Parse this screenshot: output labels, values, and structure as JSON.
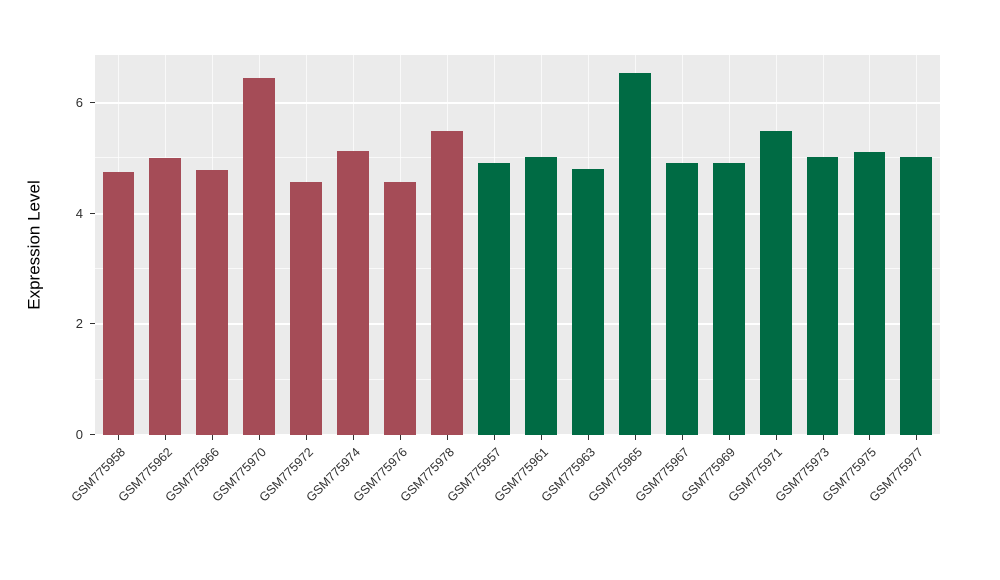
{
  "figure": {
    "background": "#FFFFFF",
    "panel_background": "#EBEBEB",
    "gridline_color": "#FFFFFF"
  },
  "chart_data": {
    "type": "bar",
    "title": "",
    "xlabel": "",
    "ylabel": "Expression Level",
    "ylim": [
      0,
      6.87
    ],
    "yticks": [
      0,
      2,
      4,
      6
    ],
    "yminor": [
      1,
      3,
      5
    ],
    "grid": true,
    "legend": "none",
    "categories": [
      "GSM775958",
      "GSM775962",
      "GSM775966",
      "GSM775970",
      "GSM775972",
      "GSM775974",
      "GSM775976",
      "GSM775978",
      "GSM775957",
      "GSM775961",
      "GSM775963",
      "GSM775965",
      "GSM775967",
      "GSM775969",
      "GSM775971",
      "GSM775973",
      "GSM775975",
      "GSM775977"
    ],
    "values": [
      4.75,
      5.0,
      4.79,
      6.45,
      4.57,
      5.13,
      4.57,
      5.5,
      4.92,
      5.03,
      4.81,
      6.55,
      4.92,
      4.92,
      5.5,
      5.03,
      5.11,
      5.02
    ],
    "bar_groups": [
      0,
      0,
      0,
      0,
      0,
      0,
      0,
      0,
      1,
      1,
      1,
      1,
      1,
      1,
      1,
      1,
      1,
      1
    ],
    "group_colors": [
      "#A54C57",
      "#006B44"
    ]
  }
}
